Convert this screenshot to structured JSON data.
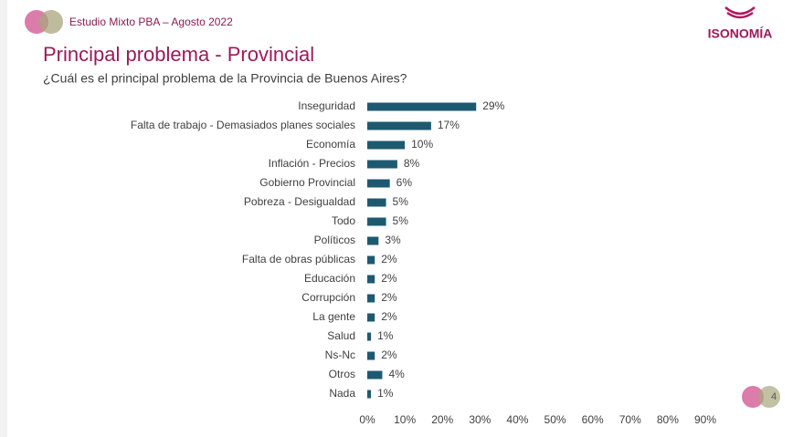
{
  "header": {
    "study": "Estudio Mixto PBA – Agosto 2022",
    "brand": "ISONOMÍA"
  },
  "page_number": 4,
  "chart_data": {
    "type": "bar",
    "orientation": "horizontal",
    "title": "Principal problema - Provincial",
    "subtitle": "¿Cuál es el principal problema de la Provincia de Buenos Aires?",
    "categories": [
      "Inseguridad",
      "Falta de trabajo - Demasiados planes sociales",
      "Economía",
      "Inflación - Precios",
      "Gobierno Provincial",
      "Pobreza - Desigualdad",
      "Todo",
      "Políticos",
      "Falta de obras públicas",
      "Educación",
      "Corrupción",
      "La gente",
      "Salud",
      "Ns-Nc",
      "Otros",
      "Nada"
    ],
    "values": [
      29,
      17,
      10,
      8,
      6,
      5,
      5,
      3,
      2,
      2,
      2,
      2,
      1,
      2,
      4,
      1
    ],
    "value_labels": [
      "29%",
      "17%",
      "10%",
      "8%",
      "6%",
      "5%",
      "5%",
      "3%",
      "2%",
      "2%",
      "2%",
      "2%",
      "1%",
      "2%",
      "4%",
      "1%"
    ],
    "color": "#1d5a70",
    "xlim": [
      0,
      90
    ],
    "xticks": [
      {
        "value": 0,
        "label": "0%"
      },
      {
        "value": 10,
        "label": "10%"
      },
      {
        "value": 20,
        "label": "20%"
      },
      {
        "value": 30,
        "label": "30%"
      },
      {
        "value": 40,
        "label": "40%"
      },
      {
        "value": 50,
        "label": "50%"
      },
      {
        "value": 60,
        "label": "60%"
      },
      {
        "value": 70,
        "label": "70%"
      },
      {
        "value": 80,
        "label": "80%"
      },
      {
        "value": 90,
        "label": "90%"
      }
    ],
    "grid": false
  }
}
